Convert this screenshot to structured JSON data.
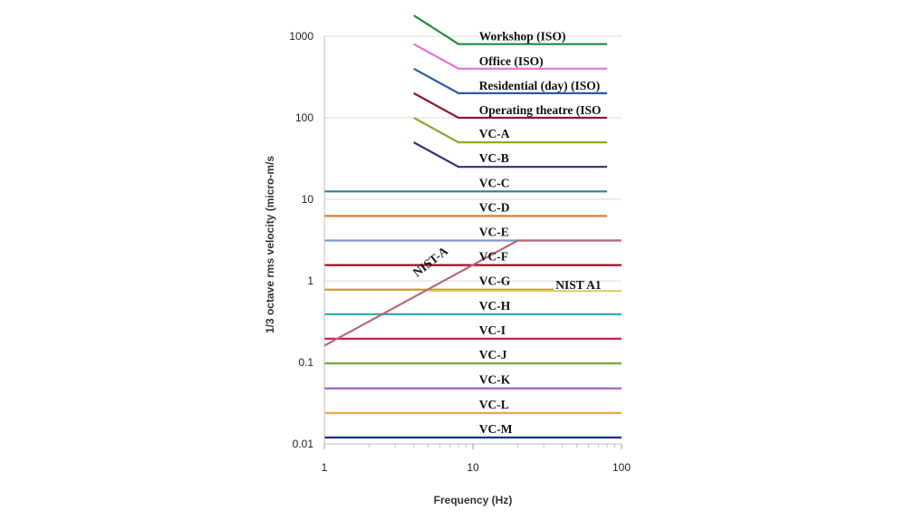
{
  "chart_data": {
    "type": "line",
    "xlabel": "Frequency (Hz)",
    "ylabel": "1/3 octave rms velocity (micro-m/s",
    "xscale": "log",
    "yscale": "log",
    "xlim": [
      1,
      100
    ],
    "ylim": [
      0.01,
      1000
    ],
    "xticks": [
      "1",
      "10",
      "100"
    ],
    "yticks": [
      "0.01",
      "0.1",
      "1",
      "10",
      "100",
      "1000"
    ],
    "grid": "horizontal",
    "series": [
      {
        "name": "Workshop (ISO)",
        "color": "#1e8a3c",
        "points": [
          [
            4,
            1800
          ],
          [
            8,
            800
          ],
          [
            80,
            800
          ]
        ]
      },
      {
        "name": "Office (ISO)",
        "color": "#e86ed8",
        "points": [
          [
            4,
            800
          ],
          [
            8,
            400
          ],
          [
            80,
            400
          ]
        ]
      },
      {
        "name": "Residential (day) (ISO)",
        "color": "#2e5aa6",
        "points": [
          [
            4,
            400
          ],
          [
            8,
            200
          ],
          [
            80,
            200
          ]
        ]
      },
      {
        "name": "Operating theatre (ISO",
        "color": "#8b1a2b",
        "points": [
          [
            4,
            200
          ],
          [
            8,
            100
          ],
          [
            80,
            100
          ]
        ]
      },
      {
        "name": "VC-A",
        "color": "#8fa82e",
        "points": [
          [
            4,
            100
          ],
          [
            8,
            50
          ],
          [
            80,
            50
          ]
        ]
      },
      {
        "name": "VC-B",
        "color": "#3d2a78",
        "points": [
          [
            4,
            50
          ],
          [
            8,
            25
          ],
          [
            80,
            25
          ]
        ]
      },
      {
        "name": "VC-C",
        "color": "#2f7f8e",
        "points": [
          [
            1,
            12.5
          ],
          [
            80,
            12.5
          ]
        ]
      },
      {
        "name": "VC-D",
        "color": "#e07a2e",
        "points": [
          [
            1,
            6.25
          ],
          [
            80,
            6.25
          ]
        ]
      },
      {
        "name": "VC-E",
        "color": "#7f97cf",
        "points": [
          [
            1,
            3.12
          ],
          [
            100,
            3.12
          ]
        ]
      },
      {
        "name": "VC-F",
        "color": "#9b1022",
        "points": [
          [
            1,
            1.56
          ],
          [
            100,
            1.56
          ]
        ]
      },
      {
        "name": "VC-G",
        "color": "#c09a2a",
        "points": [
          [
            1,
            0.78
          ],
          [
            35,
            0.78
          ]
        ]
      },
      {
        "name": "VC-H",
        "color": "#2aa9a5",
        "points": [
          [
            1,
            0.39
          ],
          [
            100,
            0.39
          ]
        ]
      },
      {
        "name": "VC-I",
        "color": "#d11f52",
        "points": [
          [
            1,
            0.195
          ],
          [
            100,
            0.195
          ]
        ]
      },
      {
        "name": "VC-J",
        "color": "#77a63b",
        "points": [
          [
            1,
            0.097
          ],
          [
            100,
            0.097
          ]
        ]
      },
      {
        "name": "VC-K",
        "color": "#9a58c9",
        "points": [
          [
            1,
            0.048
          ],
          [
            100,
            0.048
          ]
        ]
      },
      {
        "name": "VC-L",
        "color": "#f0a040",
        "points": [
          [
            1,
            0.024
          ],
          [
            100,
            0.024
          ]
        ]
      },
      {
        "name": "VC-M",
        "color": "#1e2e8a",
        "points": [
          [
            1,
            0.012
          ],
          [
            100,
            0.012
          ]
        ]
      },
      {
        "name": "NIST-A",
        "color": "#b56a78",
        "points": [
          [
            1,
            0.16
          ],
          [
            20,
            3.12
          ],
          [
            100,
            3.12
          ]
        ]
      },
      {
        "name": "NIST A1",
        "color": "#d6d06a",
        "points": [
          [
            5,
            0.75
          ],
          [
            100,
            0.75
          ]
        ]
      }
    ]
  }
}
